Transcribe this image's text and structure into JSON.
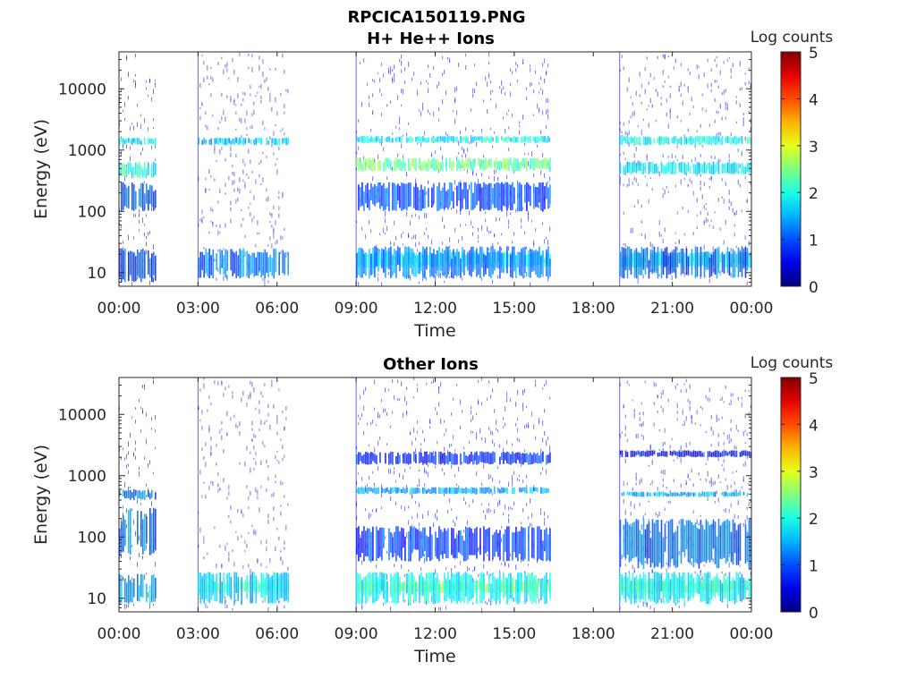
{
  "figure_title": "RPCICA150119.PNG",
  "chart_data": [
    {
      "type": "heatmap",
      "title": "H+ He++ Ions",
      "xlabel": "Time",
      "ylabel": "Energy (eV)",
      "x_ticks": [
        "00:00",
        "03:00",
        "06:00",
        "09:00",
        "12:00",
        "15:00",
        "18:00",
        "21:00",
        "00:00"
      ],
      "y_ticks": [
        "10",
        "100",
        "1000",
        "10000"
      ],
      "xlim_hours": [
        0,
        24
      ],
      "ylim_eV": [
        6,
        40000
      ],
      "y_scale": "log",
      "colorbar": {
        "label": "Log counts",
        "ticks": [
          "0",
          "1",
          "2",
          "3",
          "4",
          "5"
        ],
        "range": [
          0,
          5
        ],
        "colormap": "jet"
      },
      "data_segments_hours": [
        [
          0.0,
          1.4
        ],
        [
          3.0,
          6.4
        ],
        [
          9.0,
          16.4
        ],
        [
          19.0,
          24.0
        ]
      ],
      "bands": [
        {
          "segment": 0,
          "e_low": 1200,
          "e_high": 1600,
          "level": 1.8
        },
        {
          "segment": 0,
          "e_low": 350,
          "e_high": 650,
          "level": 2.0
        },
        {
          "segment": 0,
          "e_low": 100,
          "e_high": 300,
          "level": 1.0
        },
        {
          "segment": 0,
          "e_low": 7,
          "e_high": 25,
          "level": 0.9
        },
        {
          "segment": 1,
          "e_low": 1200,
          "e_high": 1600,
          "level": 1.6
        },
        {
          "segment": 1,
          "e_low": 8,
          "e_high": 25,
          "level": 1.2
        },
        {
          "segment": 2,
          "e_low": 1300,
          "e_high": 1700,
          "level": 1.9
        },
        {
          "segment": 2,
          "e_low": 450,
          "e_high": 750,
          "level": 2.4
        },
        {
          "segment": 2,
          "e_low": 100,
          "e_high": 300,
          "level": 1.0
        },
        {
          "segment": 2,
          "e_low": 12,
          "e_high": 22,
          "level": 1.9
        },
        {
          "segment": 2,
          "e_low": 8,
          "e_high": 27,
          "level": 1.3
        },
        {
          "segment": 3,
          "e_low": 1200,
          "e_high": 1700,
          "level": 1.9
        },
        {
          "segment": 3,
          "e_low": 400,
          "e_high": 650,
          "level": 1.8
        },
        {
          "segment": 3,
          "e_low": 12,
          "e_high": 22,
          "level": 1.7
        },
        {
          "segment": 3,
          "e_low": 8,
          "e_high": 27,
          "level": 1.1
        }
      ]
    },
    {
      "type": "heatmap",
      "title": "Other Ions",
      "xlabel": "Time",
      "ylabel": "Energy (eV)",
      "x_ticks": [
        "00:00",
        "03:00",
        "06:00",
        "09:00",
        "12:00",
        "15:00",
        "18:00",
        "21:00",
        "00:00"
      ],
      "y_ticks": [
        "10",
        "100",
        "1000",
        "10000"
      ],
      "xlim_hours": [
        0,
        24
      ],
      "ylim_eV": [
        6,
        40000
      ],
      "y_scale": "log",
      "colorbar": {
        "label": "Log counts",
        "ticks": [
          "0",
          "1",
          "2",
          "3",
          "4",
          "5"
        ],
        "range": [
          0,
          5
        ],
        "colormap": "jet"
      },
      "data_segments_hours": [
        [
          0.0,
          1.4
        ],
        [
          3.0,
          6.4
        ],
        [
          9.0,
          16.4
        ],
        [
          19.0,
          24.0
        ]
      ],
      "bands": [
        {
          "segment": 0,
          "e_low": 400,
          "e_high": 600,
          "level": 1.2
        },
        {
          "segment": 0,
          "e_low": 50,
          "e_high": 300,
          "level": 1.2
        },
        {
          "segment": 0,
          "e_low": 8,
          "e_high": 25,
          "level": 1.4
        },
        {
          "segment": 1,
          "e_low": 12,
          "e_high": 20,
          "level": 2.4
        },
        {
          "segment": 1,
          "e_low": 8,
          "e_high": 27,
          "level": 1.7
        },
        {
          "segment": 2,
          "e_low": 1500,
          "e_high": 2500,
          "level": 0.8
        },
        {
          "segment": 2,
          "e_low": 500,
          "e_high": 650,
          "level": 1.4
        },
        {
          "segment": 2,
          "e_low": 40,
          "e_high": 150,
          "level": 0.9
        },
        {
          "segment": 2,
          "e_low": 12,
          "e_high": 20,
          "level": 2.6
        },
        {
          "segment": 2,
          "e_low": 8,
          "e_high": 27,
          "level": 1.9
        },
        {
          "segment": 3,
          "e_low": 2000,
          "e_high": 2600,
          "level": 0.6
        },
        {
          "segment": 3,
          "e_low": 450,
          "e_high": 550,
          "level": 1.4
        },
        {
          "segment": 3,
          "e_low": 30,
          "e_high": 200,
          "level": 1.1
        },
        {
          "segment": 3,
          "e_low": 12,
          "e_high": 20,
          "level": 2.5
        },
        {
          "segment": 3,
          "e_low": 8,
          "e_high": 27,
          "level": 1.8
        }
      ]
    }
  ]
}
